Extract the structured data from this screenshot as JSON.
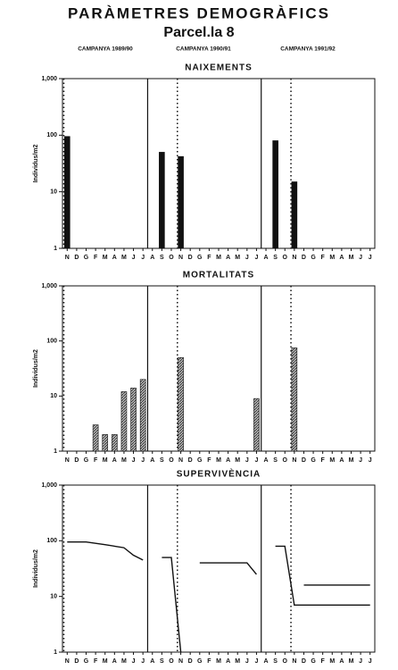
{
  "header": {
    "title": "PARÀMETRES DEMOGRÀFICS",
    "subtitle": "Parcel.la 8",
    "campaigns": [
      "CAMPANYA 1989/90",
      "CAMPANYA 1990/91",
      "CAMPANYA 1991/92"
    ]
  },
  "chart_data": [
    {
      "type": "bar",
      "title": "NAIXEMENTS",
      "y_label": "Individus/m2",
      "log_scale": true,
      "categories": [
        "N",
        "D",
        "G",
        "F",
        "M",
        "A",
        "M",
        "J",
        "J",
        "A",
        "S",
        "O",
        "N",
        "D",
        "G",
        "F",
        "M",
        "A",
        "M",
        "J",
        "J",
        "A",
        "S",
        "O",
        "N",
        "D",
        "G",
        "F",
        "M",
        "A",
        "M",
        "J",
        "J"
      ],
      "ylim": [
        1,
        1000
      ],
      "yticks": [
        1,
        10,
        100,
        {
          "value": 1000,
          "label": "1,000"
        }
      ],
      "series": [
        {
          "color": "#111111",
          "values": [
            95,
            null,
            null,
            null,
            null,
            null,
            null,
            null,
            null,
            null,
            50,
            null,
            42,
            null,
            null,
            null,
            null,
            null,
            null,
            null,
            null,
            null,
            80,
            null,
            15,
            null,
            null,
            null,
            null,
            null,
            null,
            null,
            null
          ]
        }
      ]
    },
    {
      "type": "bar",
      "title": "MORTALITATS",
      "y_label": "Individus/m2",
      "log_scale": true,
      "categories": [
        "N",
        "D",
        "G",
        "F",
        "M",
        "A",
        "M",
        "J",
        "J",
        "A",
        "S",
        "O",
        "N",
        "D",
        "G",
        "F",
        "M",
        "A",
        "M",
        "J",
        "J",
        "A",
        "S",
        "O",
        "N",
        "D",
        "G",
        "F",
        "M",
        "A",
        "M",
        "J",
        "J"
      ],
      "ylim": [
        1,
        1000
      ],
      "yticks": [
        1,
        10,
        100,
        {
          "value": 1000,
          "label": "1,000"
        }
      ],
      "series": [
        {
          "color": "hatch",
          "values": [
            null,
            null,
            null,
            3,
            2,
            2,
            12,
            14,
            20,
            null,
            null,
            null,
            50,
            null,
            null,
            null,
            null,
            null,
            null,
            null,
            9,
            null,
            null,
            null,
            75,
            null,
            null,
            null,
            null,
            null,
            null,
            null,
            null
          ]
        }
      ]
    },
    {
      "type": "line",
      "title": "SUPERVIVÈNCIA",
      "y_label": "Individus/m2",
      "log_scale": true,
      "categories": [
        "N",
        "D",
        "G",
        "F",
        "M",
        "A",
        "M",
        "J",
        "J",
        "A",
        "S",
        "O",
        "N",
        "D",
        "G",
        "F",
        "M",
        "A",
        "M",
        "J",
        "J",
        "A",
        "S",
        "O",
        "N",
        "D",
        "G",
        "F",
        "M",
        "A",
        "M",
        "J",
        "J"
      ],
      "ylim": [
        1,
        1000
      ],
      "yticks": [
        1,
        10,
        100,
        {
          "value": 1000,
          "label": "1,000"
        }
      ],
      "series": [
        {
          "color": "#111111",
          "values": [
            95,
            95,
            95,
            90,
            85,
            80,
            75,
            55,
            45,
            null,
            50,
            50,
            1,
            null,
            40,
            40,
            40,
            40,
            40,
            40,
            25,
            null,
            80,
            80,
            7,
            7,
            7,
            7,
            7,
            7,
            7,
            7,
            7
          ]
        },
        {
          "color": "#111111",
          "values": [
            null,
            null,
            null,
            null,
            null,
            null,
            null,
            null,
            null,
            null,
            null,
            null,
            null,
            null,
            null,
            null,
            null,
            null,
            null,
            null,
            null,
            null,
            null,
            null,
            null,
            16,
            16,
            16,
            16,
            16,
            16,
            16,
            16
          ]
        }
      ]
    }
  ]
}
